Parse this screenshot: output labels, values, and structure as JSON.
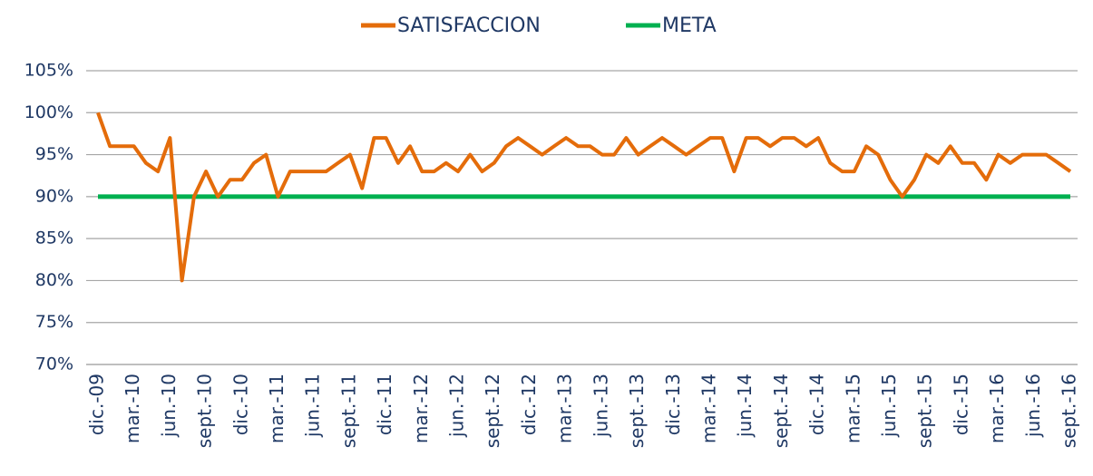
{
  "chart_data": {
    "type": "line",
    "categories": [
      "dic.-09",
      null,
      null,
      "mar.-10",
      null,
      null,
      "jun.-10",
      null,
      null,
      "sept.-10",
      null,
      null,
      "dic.-10",
      null,
      null,
      "mar.-11",
      null,
      null,
      "jun.-11",
      null,
      null,
      "sept.-11",
      null,
      null,
      "dic.-11",
      null,
      null,
      "mar.-12",
      null,
      null,
      "jun.-12",
      null,
      null,
      "sept.-12",
      null,
      null,
      "dic.-12",
      null,
      null,
      "mar.-13",
      null,
      null,
      "jun.-13",
      null,
      null,
      "sept.-13",
      null,
      null,
      "dic.-13",
      null,
      null,
      "mar.-14",
      null,
      null,
      "jun.-14",
      null,
      null,
      "sept.-14",
      null,
      null,
      "dic.-14",
      null,
      null,
      "mar.-15",
      null,
      null,
      "jun.-15",
      null,
      null,
      "sept.-15",
      null,
      null,
      "dic.-15",
      null,
      null,
      "mar.-16",
      null,
      null,
      "jun.-16",
      null,
      null,
      "sept.-16"
    ],
    "series": [
      {
        "name": "SATISFACCION",
        "color": "#e46c0a",
        "values": [
          100,
          96,
          96,
          96,
          94,
          93,
          97,
          80,
          90,
          93,
          90,
          92,
          92,
          94,
          95,
          90,
          93,
          93,
          93,
          93,
          94,
          95,
          91,
          97,
          97,
          94,
          96,
          93,
          93,
          94,
          93,
          95,
          93,
          94,
          96,
          97,
          96,
          95,
          96,
          97,
          96,
          96,
          95,
          95,
          97,
          95,
          96,
          97,
          96,
          95,
          96,
          97,
          97,
          93,
          97,
          97,
          96,
          97,
          97,
          96,
          97,
          94,
          93,
          93,
          96,
          95,
          92,
          90,
          92,
          95,
          94,
          96,
          94,
          94,
          92,
          95,
          94,
          95,
          95,
          95,
          94,
          93
        ]
      },
      {
        "name": "META",
        "color": "#00b050",
        "values": [
          90,
          90,
          90,
          90,
          90,
          90,
          90,
          90,
          90,
          90,
          90,
          90,
          90,
          90,
          90,
          90,
          90,
          90,
          90,
          90,
          90,
          90,
          90,
          90,
          90,
          90,
          90,
          90,
          90,
          90,
          90,
          90,
          90,
          90,
          90,
          90,
          90,
          90,
          90,
          90,
          90,
          90,
          90,
          90,
          90,
          90,
          90,
          90,
          90,
          90,
          90,
          90,
          90,
          90,
          90,
          90,
          90,
          90,
          90,
          90,
          90,
          90,
          90,
          90,
          90,
          90,
          90,
          90,
          90,
          90,
          90,
          90,
          90,
          90,
          90,
          90,
          90,
          90,
          90,
          90,
          90,
          90
        ]
      }
    ],
    "ylim": [
      70,
      105
    ],
    "yticks": [
      {
        "value": 70,
        "label": "70%"
      },
      {
        "value": 75,
        "label": "75%"
      },
      {
        "value": 80,
        "label": "80%"
      },
      {
        "value": 85,
        "label": "85%"
      },
      {
        "value": 90,
        "label": "90%"
      },
      {
        "value": 95,
        "label": "95%"
      },
      {
        "value": 100,
        "label": "100%"
      },
      {
        "value": 105,
        "label": "105%"
      }
    ],
    "grid": true,
    "legend": "top"
  }
}
